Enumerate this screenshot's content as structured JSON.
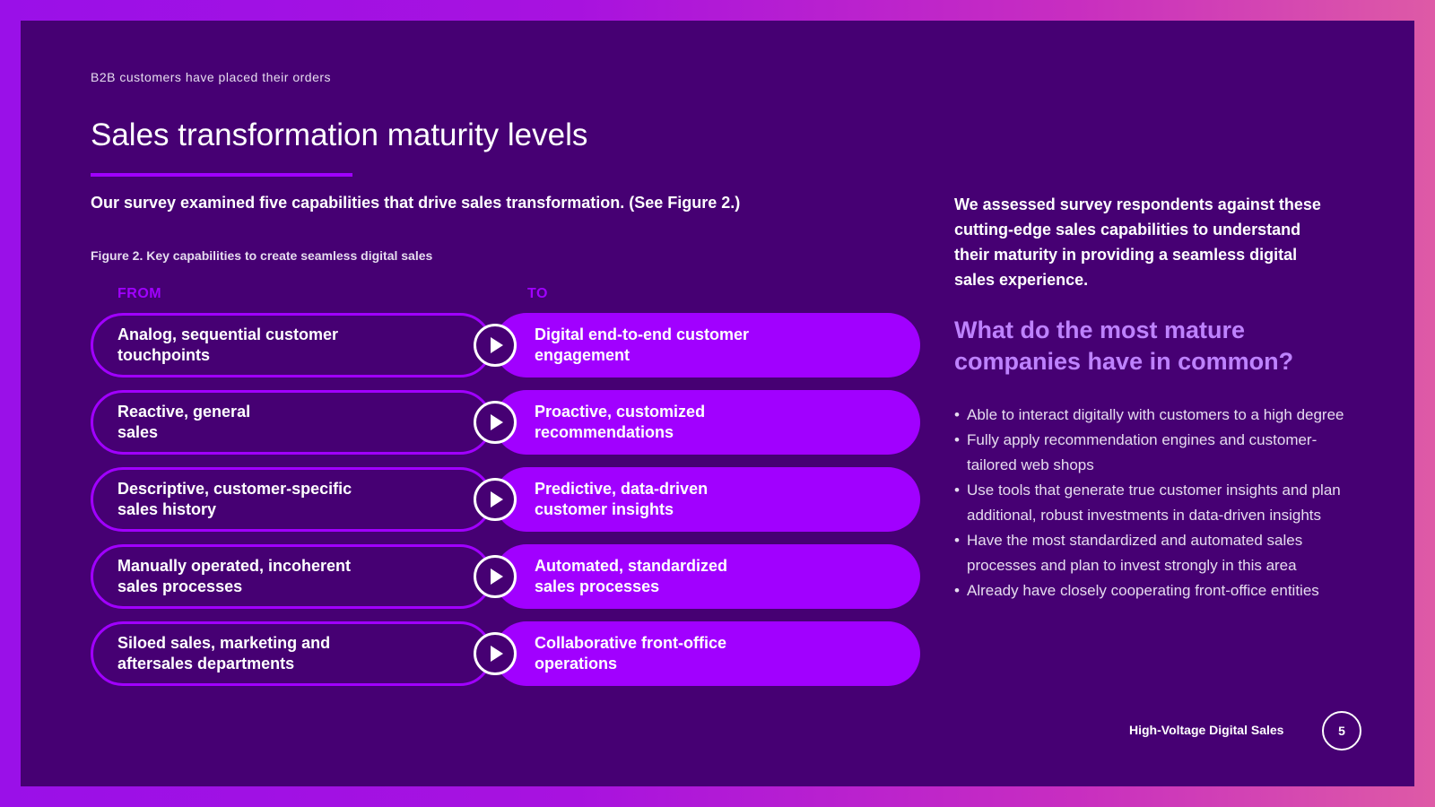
{
  "header": {
    "kicker": "B2B customers have placed their orders",
    "title": "Sales transformation maturity levels"
  },
  "intro": "Our survey examined five capabilities that drive sales transformation. (See Figure 2.)",
  "figure": {
    "caption": "Figure 2. Key capabilities to create seamless digital sales",
    "from_label": "FROM",
    "to_label": "TO",
    "rows": [
      {
        "from": "Analog, sequential customer touchpoints",
        "to": "Digital end-to-end customer engagement"
      },
      {
        "from": "Reactive, general sales",
        "to": "Proactive, customized recommendations"
      },
      {
        "from": "Descriptive, customer-specific sales history",
        "to": "Predictive, data-driven customer insights"
      },
      {
        "from": "Manually operated, incoherent sales processes",
        "to": "Automated, standardized sales processes"
      },
      {
        "from": "Siloed sales, marketing and aftersales departments",
        "to": "Collaborative front-office operations"
      }
    ]
  },
  "sidebar": {
    "intro": "We assessed survey respondents against these cutting-edge sales capabilities to understand their maturity in providing a seamless digital sales experience.",
    "heading": "What do the most mature companies have in common?",
    "bullets": [
      "Able to interact digitally with customers to a high degree",
      "Fully apply recommendation engines and customer-tailored web shops",
      "Use tools that generate true customer insights and plan additional, robust investments in data-driven insights",
      "Have the most standardized and automated sales processes and plan to invest strongly in this area",
      "Already have closely cooperating front-office entities"
    ]
  },
  "footer": {
    "publication": "High-Voltage Digital Sales",
    "page_number": "5"
  },
  "icons": {
    "arrow": "play-icon"
  },
  "colors": {
    "background": "#460073",
    "accent": "#a100ff",
    "heading_accent": "#be82ff"
  }
}
